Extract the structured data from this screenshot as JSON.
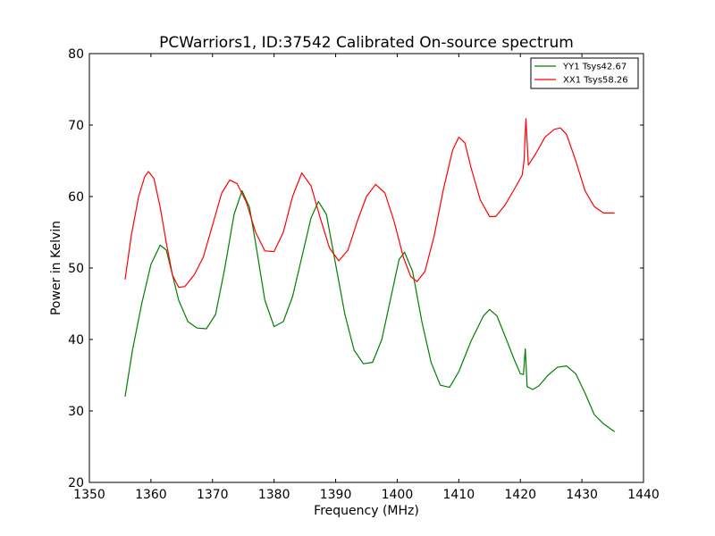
{
  "chart_data": {
    "type": "line",
    "title": "PCWarriors1, ID:37542 Calibrated On-source spectrum",
    "xlabel": "Frequency (MHz)",
    "ylabel": "Power in Kelvin",
    "xlim": [
      1350,
      1440
    ],
    "ylim": [
      20,
      80
    ],
    "xticks": [
      1350,
      1360,
      1370,
      1380,
      1390,
      1400,
      1410,
      1420,
      1430,
      1440
    ],
    "yticks": [
      20,
      30,
      40,
      50,
      60,
      70,
      80
    ],
    "grid": false,
    "legend_position": "top-right",
    "series": [
      {
        "name": "YY1 Tsys42.67",
        "color": "#008000",
        "points": [
          [
            1355.8,
            32.0
          ],
          [
            1357.0,
            38.5
          ],
          [
            1358.5,
            45.0
          ],
          [
            1360.0,
            50.5
          ],
          [
            1361.5,
            53.2
          ],
          [
            1362.5,
            52.5
          ],
          [
            1363.5,
            49.0
          ],
          [
            1364.5,
            45.5
          ],
          [
            1366.0,
            42.5
          ],
          [
            1367.5,
            41.6
          ],
          [
            1369.0,
            41.5
          ],
          [
            1370.5,
            43.5
          ],
          [
            1372.0,
            50.0
          ],
          [
            1373.5,
            57.5
          ],
          [
            1374.8,
            60.8
          ],
          [
            1376.0,
            58.5
          ],
          [
            1377.0,
            53.5
          ],
          [
            1378.5,
            45.5
          ],
          [
            1380.0,
            41.8
          ],
          [
            1381.5,
            42.5
          ],
          [
            1383.0,
            46.0
          ],
          [
            1384.5,
            51.5
          ],
          [
            1386.0,
            57.0
          ],
          [
            1387.2,
            59.3
          ],
          [
            1388.5,
            57.5
          ],
          [
            1390.0,
            50.5
          ],
          [
            1391.5,
            43.5
          ],
          [
            1393.0,
            38.5
          ],
          [
            1394.5,
            36.6
          ],
          [
            1396.0,
            36.8
          ],
          [
            1397.5,
            40.0
          ],
          [
            1399.0,
            46.0
          ],
          [
            1400.3,
            51.2
          ],
          [
            1401.2,
            52.2
          ],
          [
            1402.5,
            49.5
          ],
          [
            1404.0,
            42.5
          ],
          [
            1405.5,
            36.8
          ],
          [
            1407.0,
            33.6
          ],
          [
            1408.5,
            33.3
          ],
          [
            1410.0,
            35.5
          ],
          [
            1412.0,
            39.8
          ],
          [
            1414.0,
            43.3
          ],
          [
            1415.0,
            44.2
          ],
          [
            1416.2,
            43.3
          ],
          [
            1417.5,
            40.5
          ],
          [
            1419.0,
            37.2
          ],
          [
            1420.0,
            35.2
          ],
          [
            1420.5,
            35.1
          ],
          [
            1420.8,
            38.7
          ],
          [
            1421.1,
            33.4
          ],
          [
            1422.0,
            33.0
          ],
          [
            1423.0,
            33.5
          ],
          [
            1424.5,
            35.0
          ],
          [
            1426.0,
            36.1
          ],
          [
            1427.5,
            36.3
          ],
          [
            1429.0,
            35.2
          ],
          [
            1430.5,
            32.5
          ],
          [
            1432.0,
            29.5
          ],
          [
            1433.5,
            28.2
          ],
          [
            1435.3,
            27.1
          ]
        ]
      },
      {
        "name": "XX1 Tsys58.26",
        "color": "#ff0000",
        "points": [
          [
            1355.8,
            48.4
          ],
          [
            1356.8,
            54.5
          ],
          [
            1358.0,
            60.0
          ],
          [
            1359.0,
            62.8
          ],
          [
            1359.6,
            63.5
          ],
          [
            1360.5,
            62.5
          ],
          [
            1361.5,
            58.5
          ],
          [
            1362.5,
            53.5
          ],
          [
            1363.5,
            49.0
          ],
          [
            1364.5,
            47.3
          ],
          [
            1365.5,
            47.4
          ],
          [
            1367.0,
            49.0
          ],
          [
            1368.5,
            51.5
          ],
          [
            1370.0,
            56.0
          ],
          [
            1371.5,
            60.5
          ],
          [
            1372.8,
            62.3
          ],
          [
            1374.0,
            61.8
          ],
          [
            1375.5,
            59.2
          ],
          [
            1377.0,
            55.0
          ],
          [
            1378.5,
            52.4
          ],
          [
            1380.0,
            52.3
          ],
          [
            1381.5,
            55.0
          ],
          [
            1383.0,
            60.0
          ],
          [
            1384.5,
            63.3
          ],
          [
            1386.0,
            61.5
          ],
          [
            1387.5,
            57.0
          ],
          [
            1389.0,
            52.8
          ],
          [
            1390.5,
            51.0
          ],
          [
            1392.0,
            52.5
          ],
          [
            1393.5,
            56.5
          ],
          [
            1395.0,
            60.0
          ],
          [
            1396.5,
            61.7
          ],
          [
            1398.0,
            60.5
          ],
          [
            1399.5,
            56.5
          ],
          [
            1401.0,
            51.5
          ],
          [
            1402.2,
            48.8
          ],
          [
            1403.2,
            48.1
          ],
          [
            1404.5,
            49.5
          ],
          [
            1406.0,
            54.5
          ],
          [
            1407.5,
            61.0
          ],
          [
            1409.0,
            66.5
          ],
          [
            1410.0,
            68.3
          ],
          [
            1411.0,
            67.5
          ],
          [
            1412.0,
            64.0
          ],
          [
            1413.5,
            59.5
          ],
          [
            1415.0,
            57.2
          ],
          [
            1416.0,
            57.2
          ],
          [
            1417.5,
            58.8
          ],
          [
            1419.0,
            61.0
          ],
          [
            1420.3,
            63.0
          ],
          [
            1420.6,
            65.0
          ],
          [
            1420.9,
            70.9
          ],
          [
            1421.3,
            64.4
          ],
          [
            1422.5,
            66.0
          ],
          [
            1424.0,
            68.3
          ],
          [
            1425.5,
            69.4
          ],
          [
            1426.5,
            69.6
          ],
          [
            1427.5,
            68.7
          ],
          [
            1429.0,
            65.0
          ],
          [
            1430.5,
            60.8
          ],
          [
            1432.0,
            58.6
          ],
          [
            1433.5,
            57.7
          ],
          [
            1435.3,
            57.7
          ]
        ]
      }
    ]
  }
}
